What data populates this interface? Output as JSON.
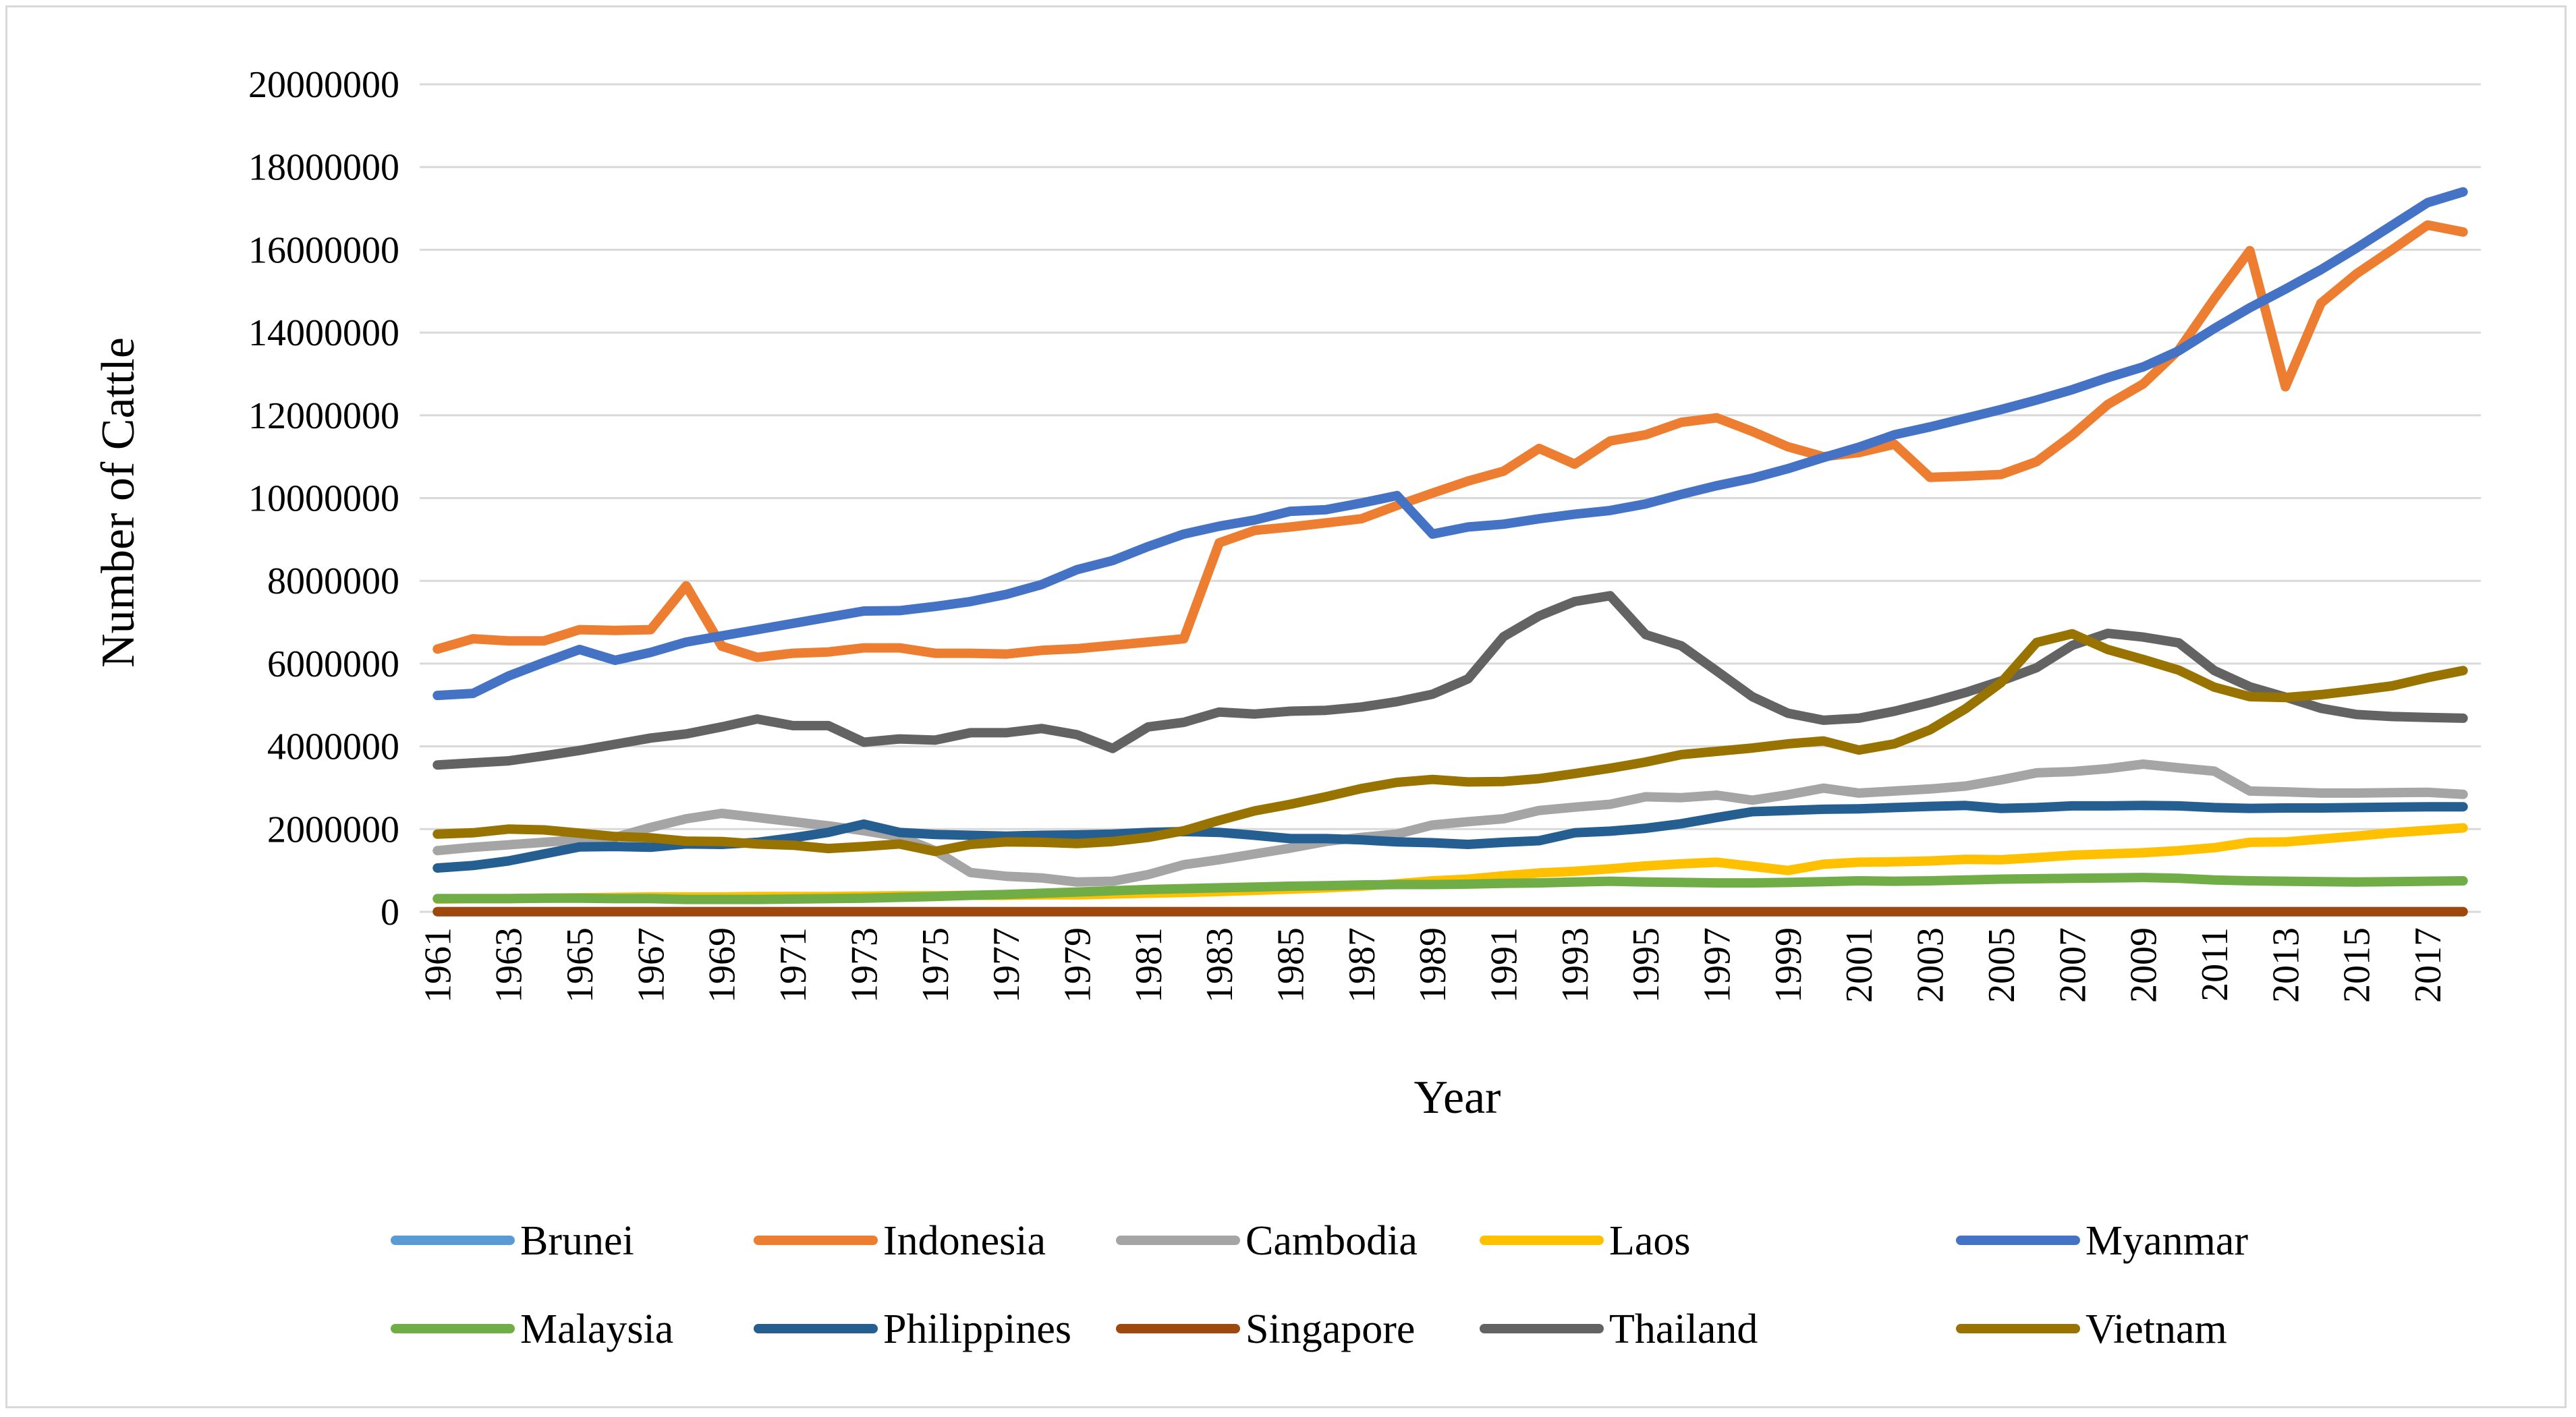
{
  "chart_data": {
    "type": "line",
    "title": "",
    "xlabel": "Year",
    "ylabel": "Number of Cattle",
    "ylim": [
      0,
      20000000
    ],
    "yticks": [
      "0",
      "2000000",
      "4000000",
      "6000000",
      "8000000",
      "10000000",
      "12000000",
      "14000000",
      "16000000",
      "18000000",
      "20000000"
    ],
    "x": [
      1961,
      1962,
      1963,
      1964,
      1965,
      1966,
      1967,
      1968,
      1969,
      1970,
      1971,
      1972,
      1973,
      1974,
      1975,
      1976,
      1977,
      1978,
      1979,
      1980,
      1981,
      1982,
      1983,
      1984,
      1985,
      1986,
      1987,
      1988,
      1989,
      1990,
      1991,
      1992,
      1993,
      1994,
      1995,
      1996,
      1997,
      1998,
      1999,
      2000,
      2001,
      2002,
      2003,
      2004,
      2005,
      2006,
      2007,
      2008,
      2009,
      2010,
      2011,
      2012,
      2013,
      2014,
      2015,
      2016,
      2017,
      2018
    ],
    "xtick_labels": [
      "1961",
      "1963",
      "1965",
      "1967",
      "1969",
      "1971",
      "1973",
      "1975",
      "1977",
      "1979",
      "1981",
      "1983",
      "1985",
      "1987",
      "1989",
      "1991",
      "1993",
      "1995",
      "1997",
      "1999",
      "2001",
      "2003",
      "2005",
      "2007",
      "2009",
      "2011",
      "2013",
      "2015",
      "2017"
    ],
    "grid": true,
    "legend_position": "bottom",
    "series": [
      {
        "name": "Brunei",
        "color": "#5b9bd5",
        "values": [
          3000,
          3000,
          3000,
          3000,
          3000,
          3000,
          3000,
          3000,
          3000,
          3000,
          3000,
          3000,
          3000,
          3000,
          3000,
          3000,
          3000,
          3000,
          3000,
          3000,
          3000,
          3000,
          3000,
          3000,
          3000,
          3000,
          3000,
          3000,
          3000,
          3000,
          3000,
          3000,
          3000,
          3000,
          3000,
          3000,
          3000,
          3000,
          3000,
          3000,
          3000,
          3000,
          3000,
          3000,
          3000,
          3000,
          3000,
          3000,
          3000,
          3000,
          3000,
          3000,
          3000,
          3000,
          3000,
          3000,
          3000,
          3000
        ]
      },
      {
        "name": "Indonesia",
        "color": "#ed7d31",
        "values": [
          6350000,
          6600000,
          6550000,
          6550000,
          6820000,
          6800000,
          6820000,
          7880000,
          6420000,
          6150000,
          6250000,
          6280000,
          6380000,
          6380000,
          6250000,
          6250000,
          6230000,
          6320000,
          6360000,
          6440000,
          6520000,
          6600000,
          8920000,
          9220000,
          9300000,
          9400000,
          9500000,
          9820000,
          10120000,
          10410000,
          10650000,
          11200000,
          10820000,
          11380000,
          11530000,
          11830000,
          11940000,
          11610000,
          11240000,
          11000000,
          11100000,
          11300000,
          10500000,
          10530000,
          10570000,
          10880000,
          11520000,
          12260000,
          12760000,
          13580000,
          14820000,
          15980000,
          12690000,
          14710000,
          15420000,
          16000000,
          16600000,
          16430000
        ]
      },
      {
        "name": "Cambodia",
        "color": "#a5a5a5",
        "values": [
          1480000,
          1560000,
          1620000,
          1680000,
          1740000,
          1800000,
          2040000,
          2250000,
          2380000,
          2280000,
          2180000,
          2080000,
          1960000,
          1820000,
          1480000,
          950000,
          860000,
          820000,
          720000,
          740000,
          900000,
          1140000,
          1260000,
          1400000,
          1540000,
          1700000,
          1800000,
          1880000,
          2100000,
          2180000,
          2250000,
          2450000,
          2530000,
          2600000,
          2780000,
          2760000,
          2820000,
          2700000,
          2830000,
          2990000,
          2870000,
          2920000,
          2970000,
          3040000,
          3190000,
          3360000,
          3390000,
          3460000,
          3570000,
          3480000,
          3400000,
          2920000,
          2900000,
          2870000,
          2870000,
          2880000,
          2890000,
          2840000
        ]
      },
      {
        "name": "Laos",
        "color": "#ffc000",
        "values": [
          310000,
          320000,
          320000,
          330000,
          340000,
          350000,
          360000,
          360000,
          360000,
          370000,
          370000,
          370000,
          380000,
          390000,
          390000,
          400000,
          400000,
          410000,
          410000,
          430000,
          450000,
          470000,
          490000,
          520000,
          550000,
          580000,
          620000,
          680000,
          750000,
          790000,
          870000,
          940000,
          980000,
          1040000,
          1110000,
          1160000,
          1200000,
          1100000,
          1000000,
          1150000,
          1200000,
          1210000,
          1230000,
          1270000,
          1260000,
          1310000,
          1370000,
          1400000,
          1430000,
          1480000,
          1550000,
          1680000,
          1690000,
          1760000,
          1830000,
          1910000,
          1970000,
          2030000
        ]
      },
      {
        "name": "Myanmar",
        "color": "#4472c4",
        "values": [
          5230000,
          5280000,
          5700000,
          6030000,
          6340000,
          6080000,
          6270000,
          6520000,
          6670000,
          6820000,
          6970000,
          7120000,
          7270000,
          7280000,
          7380000,
          7500000,
          7670000,
          7910000,
          8270000,
          8490000,
          8830000,
          9130000,
          9320000,
          9470000,
          9680000,
          9720000,
          9880000,
          10060000,
          9130000,
          9300000,
          9370000,
          9500000,
          9610000,
          9700000,
          9860000,
          10090000,
          10300000,
          10480000,
          10710000,
          10980000,
          11230000,
          11530000,
          11720000,
          11930000,
          12140000,
          12370000,
          12620000,
          12910000,
          13170000,
          13560000,
          14100000,
          14600000,
          15050000,
          15520000,
          16040000,
          16590000,
          17140000,
          17400000
        ]
      },
      {
        "name": "Malaysia",
        "color": "#70ad47",
        "values": [
          320000,
          320000,
          320000,
          330000,
          330000,
          320000,
          320000,
          300000,
          300000,
          300000,
          310000,
          320000,
          330000,
          350000,
          370000,
          400000,
          420000,
          450000,
          480000,
          510000,
          540000,
          560000,
          580000,
          600000,
          620000,
          630000,
          650000,
          660000,
          660000,
          670000,
          690000,
          700000,
          720000,
          740000,
          720000,
          710000,
          700000,
          700000,
          710000,
          730000,
          750000,
          740000,
          750000,
          770000,
          790000,
          800000,
          810000,
          820000,
          830000,
          810000,
          770000,
          750000,
          740000,
          730000,
          720000,
          730000,
          740000,
          750000
        ]
      },
      {
        "name": "Philippines",
        "color": "#255e91",
        "values": [
          1060000,
          1120000,
          1230000,
          1400000,
          1570000,
          1580000,
          1560000,
          1640000,
          1630000,
          1680000,
          1790000,
          1920000,
          2120000,
          1920000,
          1870000,
          1850000,
          1830000,
          1850000,
          1860000,
          1880000,
          1920000,
          1940000,
          1920000,
          1850000,
          1770000,
          1770000,
          1740000,
          1690000,
          1670000,
          1630000,
          1680000,
          1720000,
          1910000,
          1950000,
          2020000,
          2130000,
          2280000,
          2420000,
          2450000,
          2480000,
          2490000,
          2520000,
          2550000,
          2570000,
          2500000,
          2520000,
          2560000,
          2560000,
          2570000,
          2560000,
          2520000,
          2500000,
          2510000,
          2510000,
          2520000,
          2530000,
          2540000,
          2540000
        ]
      },
      {
        "name": "Singapore",
        "color": "#9e480e",
        "values": [
          5000,
          5000,
          5000,
          5000,
          5000,
          5000,
          5000,
          5000,
          5000,
          5000,
          5000,
          5000,
          5000,
          5000,
          5000,
          5000,
          5000,
          5000,
          5000,
          5000,
          5000,
          5000,
          5000,
          5000,
          5000,
          5000,
          5000,
          5000,
          5000,
          5000,
          5000,
          5000,
          5000,
          5000,
          5000,
          5000,
          5000,
          5000,
          5000,
          5000,
          5000,
          5000,
          5000,
          5000,
          5000,
          5000,
          5000,
          5000,
          5000,
          5000,
          5000,
          5000,
          5000,
          5000,
          5000,
          5000,
          5000,
          5000
        ]
      },
      {
        "name": "Thailand",
        "color": "#636363",
        "values": [
          3550000,
          3600000,
          3650000,
          3770000,
          3900000,
          4050000,
          4200000,
          4300000,
          4470000,
          4660000,
          4500000,
          4500000,
          4100000,
          4180000,
          4150000,
          4330000,
          4330000,
          4430000,
          4280000,
          3950000,
          4470000,
          4580000,
          4830000,
          4780000,
          4850000,
          4870000,
          4950000,
          5080000,
          5260000,
          5630000,
          6650000,
          7150000,
          7500000,
          7640000,
          6700000,
          6430000,
          5820000,
          5200000,
          4800000,
          4630000,
          4680000,
          4850000,
          5060000,
          5300000,
          5580000,
          5900000,
          6440000,
          6730000,
          6640000,
          6500000,
          5830000,
          5440000,
          5190000,
          4920000,
          4770000,
          4720000,
          4700000,
          4680000
        ]
      },
      {
        "name": "Vietnam",
        "color": "#997300",
        "values": [
          1880000,
          1910000,
          2000000,
          1980000,
          1900000,
          1820000,
          1790000,
          1710000,
          1700000,
          1640000,
          1610000,
          1530000,
          1580000,
          1640000,
          1460000,
          1630000,
          1690000,
          1680000,
          1650000,
          1700000,
          1800000,
          1960000,
          2210000,
          2440000,
          2600000,
          2780000,
          2980000,
          3130000,
          3200000,
          3140000,
          3150000,
          3220000,
          3340000,
          3470000,
          3620000,
          3800000,
          3880000,
          3960000,
          4060000,
          4130000,
          3910000,
          4060000,
          4400000,
          4910000,
          5540000,
          6510000,
          6720000,
          6340000,
          6100000,
          5840000,
          5430000,
          5200000,
          5180000,
          5250000,
          5350000,
          5460000,
          5660000,
          5830000
        ]
      }
    ]
  }
}
